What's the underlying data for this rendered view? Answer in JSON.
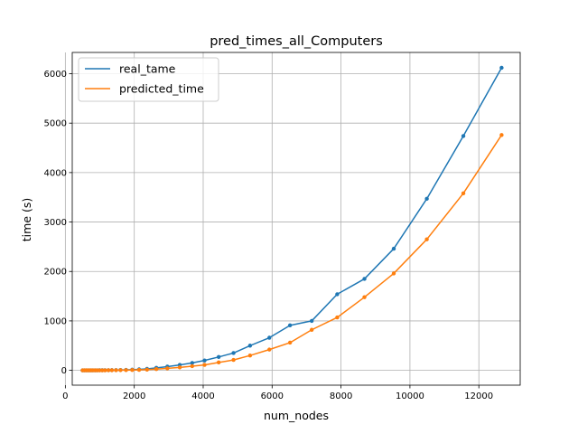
{
  "chart_data": {
    "type": "line",
    "title": "pred_times_all_Computers",
    "xlabel": "num_nodes",
    "ylabel": "time (s)",
    "xlim": [
      200,
      13200
    ],
    "ylim": [
      -300,
      6430
    ],
    "xticks": [
      0,
      2000,
      4000,
      6000,
      8000,
      10000,
      12000
    ],
    "yticks": [
      0,
      1000,
      2000,
      3000,
      4000,
      5000,
      6000
    ],
    "grid": true,
    "legend_position": "top-left",
    "series": [
      {
        "name": "real_tame",
        "color": "#1f77b4",
        "x": [
          500,
          550,
          600,
          650,
          700,
          750,
          800,
          860,
          920,
          990,
          1070,
          1150,
          1250,
          1350,
          1470,
          1600,
          1760,
          1940,
          2140,
          2370,
          2640,
          2960,
          3320,
          3680,
          4040,
          4450,
          4880,
          5360,
          5920,
          6520,
          7150,
          7890,
          8680,
          9530,
          10490,
          11550,
          12660
        ],
        "y": [
          0,
          0,
          0,
          0,
          0,
          0,
          0,
          1,
          1,
          2,
          2,
          3,
          3,
          4,
          5,
          7,
          10,
          14,
          20,
          30,
          50,
          75,
          110,
          150,
          200,
          270,
          350,
          500,
          660,
          910,
          1000,
          1540,
          1850,
          2460,
          3470,
          4740,
          6120
        ]
      },
      {
        "name": "predicted_time",
        "color": "#ff7f0e",
        "x": [
          500,
          550,
          600,
          650,
          700,
          750,
          800,
          860,
          920,
          990,
          1070,
          1150,
          1250,
          1350,
          1470,
          1600,
          1760,
          1940,
          2140,
          2370,
          2640,
          2960,
          3320,
          3680,
          4040,
          4450,
          4880,
          5360,
          5920,
          6520,
          7150,
          7890,
          8680,
          9530,
          10490,
          11550,
          12660
        ],
        "y": [
          0,
          0,
          0,
          0,
          0,
          0,
          0,
          0,
          0,
          1,
          1,
          1,
          2,
          2,
          3,
          4,
          5,
          7,
          10,
          15,
          25,
          40,
          60,
          85,
          110,
          160,
          210,
          300,
          420,
          560,
          820,
          1070,
          1480,
          1960,
          2650,
          3580,
          4760
        ]
      }
    ]
  }
}
